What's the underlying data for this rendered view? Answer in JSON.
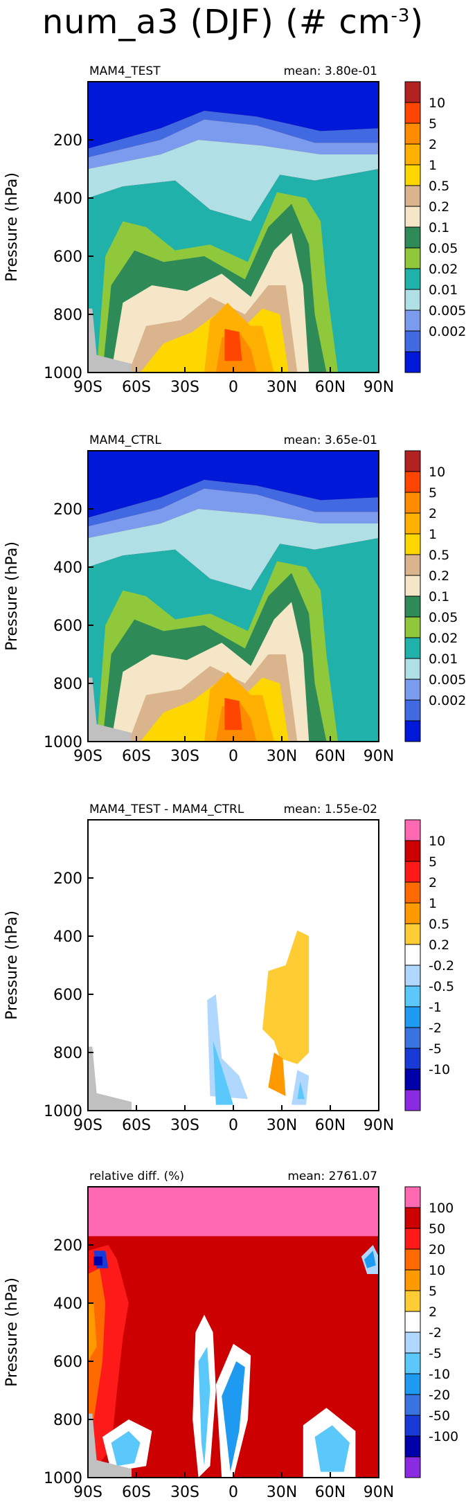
{
  "title": {
    "variable": "num_a3",
    "season": "(DJF)",
    "units_open": "(#",
    "units_base": "cm",
    "units_exp": "-3",
    "units_close": ")"
  },
  "chart_data": [
    {
      "type": "contour",
      "panel_label": "MAM4_TEST",
      "mean_text": "mean: 3.80e-01",
      "ylabel": "Pressure (hPa)",
      "x_ticks": [
        "90S",
        "60S",
        "30S",
        "0",
        "30N",
        "60N",
        "90N"
      ],
      "y_ticks": [
        "200",
        "400",
        "600",
        "800",
        "1000"
      ],
      "colorbar_labels": [
        "10",
        "5",
        "2",
        "1",
        "0.5",
        "0.2",
        "0.1",
        "0.05",
        "0.02",
        "0.01",
        "0.005",
        "0.002"
      ],
      "colorbar_colors": [
        "#b22222",
        "#ff4500",
        "#ff8c00",
        "#ffb000",
        "#ffd700",
        "#dab48c",
        "#f5e6c8",
        "#2e8b57",
        "#90c83c",
        "#20b2aa",
        "#b0e0e6",
        "#7b9bee",
        "#4169e1",
        "#0018d8"
      ],
      "grid": "off",
      "legend": "right"
    },
    {
      "type": "contour",
      "panel_label": "MAM4_CTRL",
      "mean_text": "mean: 3.65e-01",
      "ylabel": "Pressure (hPa)",
      "x_ticks": [
        "90S",
        "60S",
        "30S",
        "0",
        "30N",
        "60N",
        "90N"
      ],
      "y_ticks": [
        "200",
        "400",
        "600",
        "800",
        "1000"
      ],
      "colorbar_labels": [
        "10",
        "5",
        "2",
        "1",
        "0.5",
        "0.2",
        "0.1",
        "0.05",
        "0.02",
        "0.01",
        "0.005",
        "0.002"
      ],
      "colorbar_colors": [
        "#b22222",
        "#ff4500",
        "#ff8c00",
        "#ffb000",
        "#ffd700",
        "#dab48c",
        "#f5e6c8",
        "#2e8b57",
        "#90c83c",
        "#20b2aa",
        "#b0e0e6",
        "#7b9bee",
        "#4169e1",
        "#0018d8"
      ],
      "grid": "off",
      "legend": "right"
    },
    {
      "type": "contour",
      "panel_label": "MAM4_TEST - MAM4_CTRL",
      "mean_text": "mean: 1.55e-02",
      "ylabel": "Pressure (hPa)",
      "x_ticks": [
        "90S",
        "60S",
        "30S",
        "0",
        "30N",
        "60N",
        "90N"
      ],
      "y_ticks": [
        "200",
        "400",
        "600",
        "800",
        "1000"
      ],
      "colorbar_labels": [
        "10",
        "5",
        "2",
        "1",
        "0.5",
        "0.2",
        "-0.2",
        "-0.5",
        "-1",
        "-2",
        "-5",
        "-10"
      ],
      "colorbar_colors": [
        "#ff69b4",
        "#cc0000",
        "#ff1a1a",
        "#ff6a00",
        "#ff9900",
        "#ffcc33",
        "#ffffff",
        "#b0d8ff",
        "#5ac8fa",
        "#1e9af0",
        "#3a72e0",
        "#1a3ad8",
        "#0000aa",
        "#8a2be2"
      ],
      "grid": "off",
      "legend": "right"
    },
    {
      "type": "contour",
      "panel_label": "relative diff. (%)",
      "mean_text": "mean: 2761.07",
      "ylabel": "Pressure (hPa)",
      "x_ticks": [
        "90S",
        "60S",
        "30S",
        "0",
        "30N",
        "60N",
        "90N"
      ],
      "y_ticks": [
        "200",
        "400",
        "600",
        "800",
        "1000"
      ],
      "colorbar_labels": [
        "100",
        "50",
        "20",
        "10",
        "5",
        "2",
        "-2",
        "-5",
        "-10",
        "-20",
        "-50",
        "-100"
      ],
      "colorbar_colors": [
        "#ff69b4",
        "#cc0000",
        "#ff1a1a",
        "#ff6a00",
        "#ff9900",
        "#ffcc33",
        "#ffffff",
        "#b0d8ff",
        "#5ac8fa",
        "#1e9af0",
        "#3a72e0",
        "#1a3ad8",
        "#0000aa",
        "#8a2be2"
      ],
      "grid": "off",
      "legend": "right"
    }
  ]
}
